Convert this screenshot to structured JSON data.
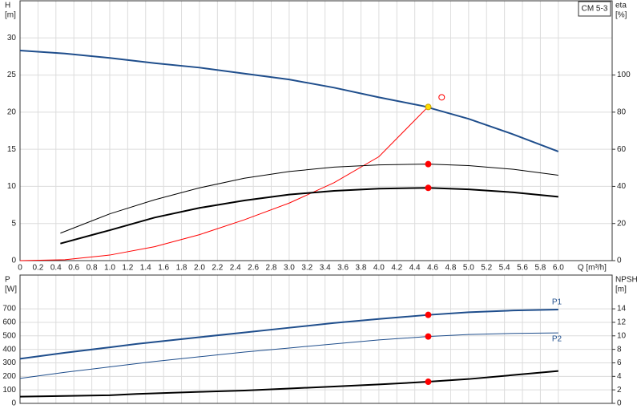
{
  "chart_data": [
    {
      "type": "line",
      "y_label": "H",
      "y_unit": "[m]",
      "y2_label": "eta",
      "y2_unit": "[%]",
      "x_label": "Q [m³/h]",
      "annotation": "CM 5-3",
      "xlim": [
        0,
        6.6
      ],
      "xticks": [
        0,
        0.2,
        0.4,
        0.6,
        0.8,
        {
          "value": 1,
          "label": "1.0"
        },
        1.2,
        1.4,
        1.6,
        1.8,
        {
          "value": 2,
          "label": "2.0"
        },
        2.2,
        2.4,
        2.6,
        2.8,
        {
          "value": 3,
          "label": "3.0"
        },
        3.2,
        3.4,
        3.6,
        3.8,
        {
          "value": 4,
          "label": "4.0"
        },
        4.2,
        4.4,
        4.6,
        4.8,
        {
          "value": 5,
          "label": "5.0"
        },
        5.2,
        5.4,
        5.6,
        5.8,
        {
          "value": 6,
          "label": "6.0"
        }
      ],
      "ylim": [
        0,
        35
      ],
      "yticks": [
        0,
        5,
        10,
        15,
        20,
        25,
        30
      ],
      "y2lim": [
        0,
        140
      ],
      "y2ticks": [
        0,
        20,
        40,
        60,
        80,
        100
      ],
      "grid": true,
      "series": [
        {
          "color": "#1f4e8c",
          "linewidth": 2,
          "x": [
            0,
            0.5,
            1,
            1.5,
            2,
            2.5,
            3,
            3.5,
            4,
            4.5,
            5,
            5.5,
            6
          ],
          "values": [
            28.3,
            27.9,
            27.3,
            26.6,
            26.0,
            25.2,
            24.4,
            23.3,
            22.0,
            20.8,
            19.1,
            17.0,
            14.7
          ]
        },
        {
          "color": "#ff0000",
          "linewidth": 1,
          "axis": "y2",
          "x": [
            0,
            0.5,
            1,
            1.5,
            2,
            2.5,
            3,
            3.5,
            4,
            4.55
          ],
          "values": [
            0,
            0.5,
            3,
            7.5,
            14,
            22,
            31,
            42,
            56,
            83
          ]
        },
        {
          "color": "#000000",
          "linewidth": 1,
          "x": [
            0.45,
            1,
            1.5,
            2,
            2.5,
            3,
            3.5,
            4,
            4.55,
            5,
            5.5,
            6
          ],
          "values": [
            3.7,
            6.3,
            8.2,
            9.8,
            11.1,
            12.0,
            12.6,
            12.9,
            13.0,
            12.8,
            12.3,
            11.5
          ]
        },
        {
          "color": "#000000",
          "linewidth": 2,
          "x": [
            0.45,
            1,
            1.5,
            2,
            2.5,
            3,
            3.5,
            4,
            4.55,
            5,
            5.5,
            6
          ],
          "values": [
            2.3,
            4.1,
            5.8,
            7.1,
            8.1,
            8.9,
            9.4,
            9.7,
            9.8,
            9.6,
            9.2,
            8.6
          ]
        }
      ],
      "points": [
        {
          "x": 4.55,
          "y": 20.7,
          "color": "#ffdd00"
        },
        {
          "x": 4.55,
          "y": 13.0,
          "color": "#ff0000"
        },
        {
          "x": 4.55,
          "y": 9.8,
          "color": "#ff0000"
        },
        {
          "x": 4.7,
          "y": 88,
          "axis": "y2",
          "color": "#ff0000",
          "open": true
        }
      ]
    },
    {
      "type": "line",
      "y_label": "P",
      "y_unit": "[W]",
      "y2_label": "NPSH",
      "y2_unit": "[m]",
      "xlim": [
        0,
        6.6
      ],
      "ylim": [
        0,
        950
      ],
      "yticks": [
        0,
        100,
        200,
        300,
        400,
        500,
        600,
        700
      ],
      "y2lim": [
        0,
        19
      ],
      "y2ticks": [
        0,
        2,
        4,
        6,
        8,
        10,
        12,
        14
      ],
      "grid": true,
      "series": [
        {
          "name": "P1",
          "color": "#1f4e8c",
          "linewidth": 2,
          "x": [
            0,
            0.5,
            1,
            1.3,
            2,
            2.5,
            3,
            3.5,
            4,
            4.55,
            5,
            5.5,
            6
          ],
          "values": [
            330,
            375,
            415,
            440,
            490,
            525,
            560,
            595,
            625,
            655,
            675,
            688,
            695
          ]
        },
        {
          "name": "P2",
          "color": "#1f4e8c",
          "linewidth": 1,
          "x": [
            0,
            0.5,
            1,
            1.5,
            2,
            2.5,
            3,
            3.5,
            4,
            4.55,
            5,
            5.5,
            6
          ],
          "values": [
            185,
            230,
            270,
            310,
            345,
            380,
            410,
            440,
            470,
            495,
            510,
            518,
            522
          ]
        },
        {
          "color": "#000000",
          "linewidth": 2,
          "axis": "y2",
          "x": [
            0,
            0.5,
            1,
            1.3,
            2,
            2.5,
            3,
            3.5,
            4,
            4.55,
            5,
            5.5,
            6
          ],
          "values": [
            1.0,
            1.1,
            1.2,
            1.4,
            1.7,
            1.9,
            2.2,
            2.5,
            2.8,
            3.2,
            3.6,
            4.2,
            4.8
          ]
        }
      ],
      "points": [
        {
          "x": 4.55,
          "y": 655,
          "color": "#ff0000"
        },
        {
          "x": 4.55,
          "y": 495,
          "color": "#ff0000"
        },
        {
          "x": 4.55,
          "y": 3.2,
          "axis": "y2",
          "color": "#ff0000"
        }
      ]
    }
  ]
}
